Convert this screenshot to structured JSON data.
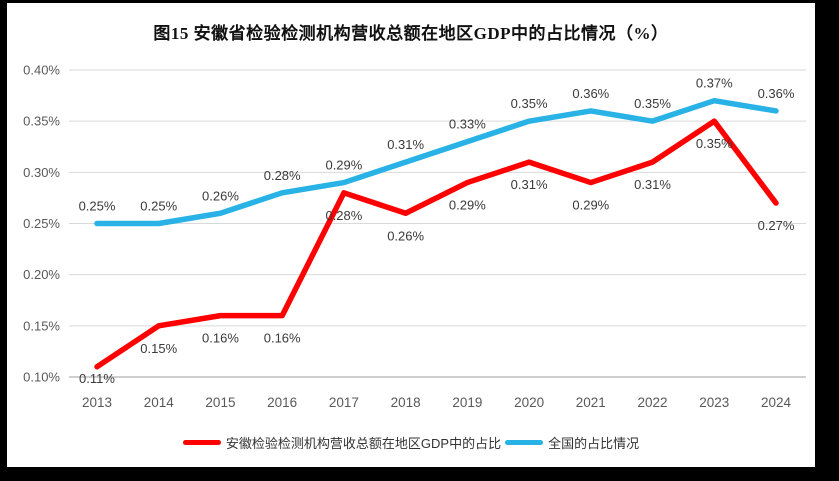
{
  "title": "图15 安徽省检验检测机构营收总额在地区GDP中的占比情况（%）",
  "chart_data": {
    "type": "line",
    "x_labels": [
      "2013",
      "2014",
      "2015",
      "2016",
      "2017",
      "2018",
      "2019",
      "2020",
      "2021",
      "2022",
      "2023",
      "2024"
    ],
    "series": [
      {
        "name": "安徽检验检测机构营收总额在地区GDP中的占比",
        "color": "#FF0000",
        "values": [
          0.11,
          0.15,
          0.16,
          0.16,
          0.28,
          0.26,
          0.29,
          0.31,
          0.29,
          0.31,
          0.35,
          0.27
        ],
        "point_labels": [
          "0.11%",
          "0.15%",
          "0.16%",
          "0.16%",
          "0.28%",
          "0.26%",
          "0.29%",
          "0.31%",
          "0.29%",
          "0.31%",
          "0.35%",
          "0.27%"
        ],
        "label_side": "below"
      },
      {
        "name": "全国的占比情况",
        "color": "#28B2E6",
        "values": [
          0.25,
          0.25,
          0.26,
          0.28,
          0.29,
          0.31,
          0.33,
          0.35,
          0.36,
          0.35,
          0.37,
          0.36
        ],
        "point_labels": [
          "0.25%",
          "0.25%",
          "0.26%",
          "0.28%",
          "0.29%",
          "0.31%",
          "0.33%",
          "0.35%",
          "0.36%",
          "0.35%",
          "0.37%",
          "0.36%"
        ],
        "label_side": "above"
      }
    ],
    "ylim": [
      0.1,
      0.4
    ],
    "y_tick_labels": [
      "0.10%",
      "0.15%",
      "0.20%",
      "0.25%",
      "0.30%",
      "0.35%",
      "0.40%"
    ],
    "grid": true,
    "legend_position": "bottom"
  },
  "colors": {
    "frame": "#000000",
    "background": "#FFFFFF",
    "grid": "#D9D9D9",
    "axis": "#BFBFBF",
    "tick_text": "#595959",
    "data_label_text": "#3A3A3A",
    "title_text": "#111111"
  }
}
